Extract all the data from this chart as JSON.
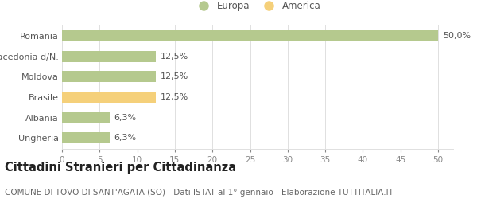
{
  "categories": [
    "Romania",
    "Macedonia d/N.",
    "Moldova",
    "Brasile",
    "Albania",
    "Ungheria"
  ],
  "values": [
    50.0,
    12.5,
    12.5,
    12.5,
    6.3,
    6.3
  ],
  "bar_colors": [
    "#b5c98e",
    "#b5c98e",
    "#b5c98e",
    "#f5d07a",
    "#b5c98e",
    "#b5c98e"
  ],
  "value_labels": [
    "50,0%",
    "12,5%",
    "12,5%",
    "12,5%",
    "6,3%",
    "6,3%"
  ],
  "legend_labels": [
    "Europa",
    "America"
  ],
  "legend_colors": [
    "#b5c98e",
    "#f5d07a"
  ],
  "title": "Cittadini Stranieri per Cittadinanza",
  "subtitle": "COMUNE DI TOVO DI SANT'AGATA (SO) - Dati ISTAT al 1° gennaio - Elaborazione TUTTITALIA.IT",
  "xlim": [
    0,
    52
  ],
  "xticks": [
    0,
    5,
    10,
    15,
    20,
    25,
    30,
    35,
    40,
    45,
    50
  ],
  "background_color": "#ffffff",
  "grid_color": "#e0e0e0",
  "bar_height": 0.55,
  "title_fontsize": 10.5,
  "subtitle_fontsize": 7.5,
  "label_fontsize": 8,
  "tick_fontsize": 7.5,
  "value_fontsize": 8
}
